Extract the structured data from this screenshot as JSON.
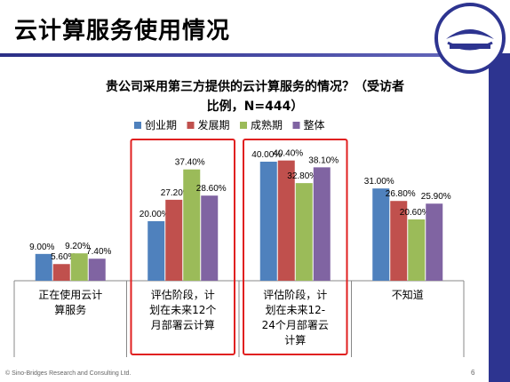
{
  "slide": {
    "title": "云计算服务使用情况",
    "footer": "© Sino-Bridges Research and Consulting Ltd.",
    "page_number": "6",
    "logo_text": "Sino-Bridges"
  },
  "chart_data": {
    "type": "bar",
    "title_lines": [
      "贵公司采用第三方提供的云计算服务的情况？（受访者",
      "比例，N=444）"
    ],
    "categories": [
      [
        "正在使用云计",
        "算服务"
      ],
      [
        "评估阶段，计",
        "划在未来12个",
        "月部署云计算"
      ],
      [
        "评估阶段，计",
        "划在未来12-",
        "24个月部署云",
        "计算"
      ],
      [
        "不知道"
      ]
    ],
    "series": [
      {
        "name": "创业期",
        "color": "#4f81bd",
        "values": [
          9.0,
          20.0,
          40.0,
          31.0
        ],
        "labels": [
          "9.00%",
          "20.00%",
          "40.00%",
          "31.00%"
        ]
      },
      {
        "name": "发展期",
        "color": "#c0504d",
        "values": [
          5.6,
          27.2,
          40.4,
          26.8
        ],
        "labels": [
          "5.60%",
          "27.20%",
          "40.40%",
          "26.80%"
        ]
      },
      {
        "name": "成熟期",
        "color": "#9bbb59",
        "values": [
          9.2,
          37.4,
          32.8,
          20.6
        ],
        "labels": [
          "9.20%",
          "37.40%",
          "32.80%",
          "20.60%"
        ]
      },
      {
        "name": "整体",
        "color": "#8064a2",
        "values": [
          7.4,
          28.6,
          38.1,
          25.9
        ],
        "labels": [
          "7.40%",
          "28.60%",
          "38.10%",
          "25.90%"
        ]
      }
    ],
    "ylim": [
      0,
      45
    ],
    "highlighted_categories": [
      1,
      2
    ],
    "highlight_color": "#e02020"
  }
}
